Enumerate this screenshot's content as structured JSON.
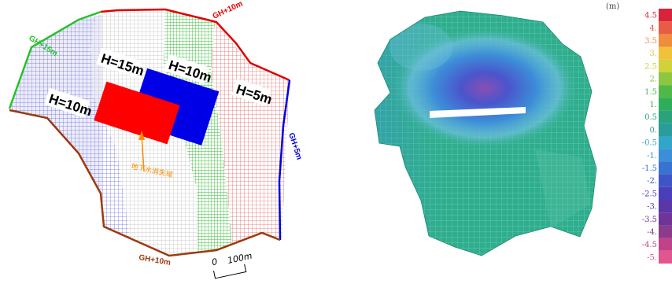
{
  "left_panel": {
    "zone_labels": {
      "h10_left": "H=10m",
      "h15": "H=15m",
      "h10_mid": "H=10m",
      "h5": "H=5m"
    },
    "boundary_labels": {
      "gh15": "GH+15m",
      "gh10_top": "GH+10m",
      "gh5": "GH+5m",
      "gh10_bottom": "GH+10m"
    },
    "annotation": "地下水消失域",
    "scale_zero": "0",
    "scale_value": "100m",
    "colors": {
      "zone_blue": "#6a6ad8",
      "zone_gray": "#bcbcbc",
      "zone_green": "#3cbf3c",
      "zone_red": "#e06a6a",
      "block_blue": "#0000e6",
      "block_red": "#ff0000",
      "bnd_green": "#27c227",
      "bnd_red": "#e00000",
      "bnd_blue": "#0000e6",
      "bnd_brown": "#9b3a0e",
      "arrow": "#ff8c00"
    }
  },
  "right_panel": {
    "unit": "(m)",
    "scale": [
      {
        "label": "4.5",
        "color": "#d9233a"
      },
      {
        "label": "4.",
        "color": "#e85c45"
      },
      {
        "label": "3.5",
        "color": "#f08c3d"
      },
      {
        "label": "3.",
        "color": "#f2c13a"
      },
      {
        "label": "2.5",
        "color": "#cfd23a"
      },
      {
        "label": "2.",
        "color": "#8dc63f"
      },
      {
        "label": "1.5",
        "color": "#4fb848"
      },
      {
        "label": "1.",
        "color": "#2fae5a"
      },
      {
        "label": "0.5",
        "color": "#2aa37c"
      },
      {
        "label": "0.",
        "color": "#2a9c9a"
      },
      {
        "label": "-0.5",
        "color": "#32a6c8"
      },
      {
        "label": "-1.",
        "color": "#3a8fd8"
      },
      {
        "label": "-1.5",
        "color": "#3a72d2"
      },
      {
        "label": "-2.",
        "color": "#3e55c8"
      },
      {
        "label": "-2.5",
        "color": "#4a3fb8"
      },
      {
        "label": "-3.",
        "color": "#5a36a6"
      },
      {
        "label": "-3.5",
        "color": "#6f3498"
      },
      {
        "label": "-4.",
        "color": "#8a3b8c"
      },
      {
        "label": "-4.5",
        "color": "#c0438a"
      },
      {
        "label": "-5.",
        "color": "#e2558e"
      }
    ],
    "colors": {
      "mesh_base": "#2fae8e",
      "mesh_light": "#5ec4a6",
      "depression_outer": "#7ab6e8",
      "depression_inner": "#3c5fd0",
      "depression_core": "#7a4fb0",
      "tunnel": "#ffffff"
    }
  }
}
